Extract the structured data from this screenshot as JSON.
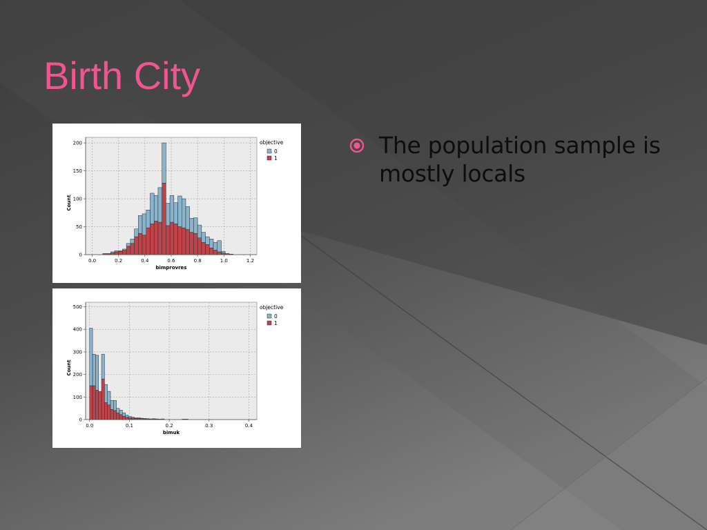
{
  "slide": {
    "title": "Birth City",
    "bullet": "The population sample is mostly locals",
    "colors": {
      "title": "#f0558f",
      "bullet_icon": "#f0558f",
      "bg_dark": "#3a3a3a",
      "bg_light": "#7a7a7a"
    },
    "bullet_icon": "target-bullet-icon"
  },
  "chart_data": [
    {
      "type": "bar",
      "stacked": true,
      "xlabel": "bimprovres",
      "ylabel": "Count",
      "xlim": [
        -0.05,
        1.25
      ],
      "ylim": [
        0,
        210
      ],
      "xticks": [
        "0.0",
        "0.2",
        "0.4",
        "0.6",
        "0.8",
        "1.0",
        "1.2"
      ],
      "yticks": [
        "0",
        "50",
        "100",
        "150",
        "200"
      ],
      "grid": true,
      "legend": {
        "title": "objective",
        "position": "right",
        "items": [
          "0",
          "1"
        ]
      },
      "series_colors": {
        "0": "#8ab4cc",
        "1": "#c0434a"
      },
      "bin_start": 0.05,
      "bin_width": 0.03,
      "series": [
        {
          "name": "1",
          "values": [
            0,
            2,
            2,
            3,
            5,
            6,
            8,
            15,
            20,
            32,
            38,
            35,
            48,
            55,
            60,
            58,
            128,
            52,
            58,
            55,
            50,
            48,
            45,
            40,
            38,
            30,
            22,
            18,
            12,
            8,
            5,
            3,
            2,
            1
          ]
        },
        {
          "name": "0",
          "values": [
            0,
            0,
            0,
            2,
            2,
            1,
            2,
            5,
            8,
            14,
            32,
            38,
            32,
            55,
            46,
            62,
            72,
            40,
            48,
            38,
            55,
            52,
            41,
            25,
            28,
            23,
            18,
            14,
            16,
            14,
            20,
            3,
            0,
            0
          ]
        }
      ]
    },
    {
      "type": "bar",
      "stacked": true,
      "xlabel": "bimuk",
      "ylabel": "Count",
      "xlim": [
        -0.01,
        0.42
      ],
      "ylim": [
        0,
        520
      ],
      "xticks": [
        "0.0",
        "0.1",
        "0.2",
        "0.3",
        "0.4"
      ],
      "yticks": [
        "0",
        "100",
        "200",
        "300",
        "400",
        "500"
      ],
      "grid": true,
      "legend": {
        "title": "objective",
        "position": "right",
        "items": [
          "0",
          "1"
        ]
      },
      "series_colors": {
        "0": "#8ab4cc",
        "1": "#c0434a"
      },
      "bin_start": 0.0,
      "bin_width": 0.0075,
      "series": [
        {
          "name": "1",
          "values": [
            150,
            150,
            130,
            125,
            180,
            75,
            65,
            45,
            40,
            30,
            22,
            15,
            10,
            8,
            6,
            5,
            5,
            4,
            3,
            3,
            2,
            3,
            2,
            1,
            1,
            0,
            0,
            0,
            0,
            0,
            0,
            1,
            1,
            0,
            0,
            0,
            0,
            0,
            0,
            0,
            0,
            0,
            0
          ]
        },
        {
          "name": "0",
          "values": [
            255,
            140,
            155,
            0,
            110,
            80,
            60,
            40,
            45,
            20,
            20,
            15,
            10,
            6,
            5,
            3,
            3,
            2,
            2,
            1,
            1,
            1,
            1,
            1,
            2,
            0,
            0,
            0,
            0,
            0,
            0,
            1,
            1,
            0,
            0,
            0,
            0,
            0,
            0,
            0,
            0,
            0,
            0
          ]
        }
      ]
    }
  ]
}
